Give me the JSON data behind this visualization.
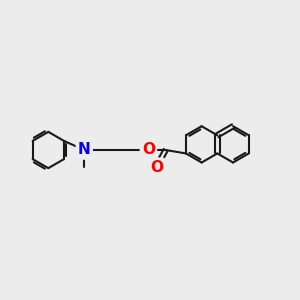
{
  "background_color": "#ececec",
  "bond_color": "#1a1a1a",
  "N_color": "#0000ff",
  "O_color": "#ff0000",
  "bond_width": 1.5,
  "fig_size": [
    3.0,
    3.0
  ],
  "dpi": 100,
  "xlim": [
    -4.5,
    5.0
  ],
  "ylim": [
    -2.5,
    2.5
  ]
}
